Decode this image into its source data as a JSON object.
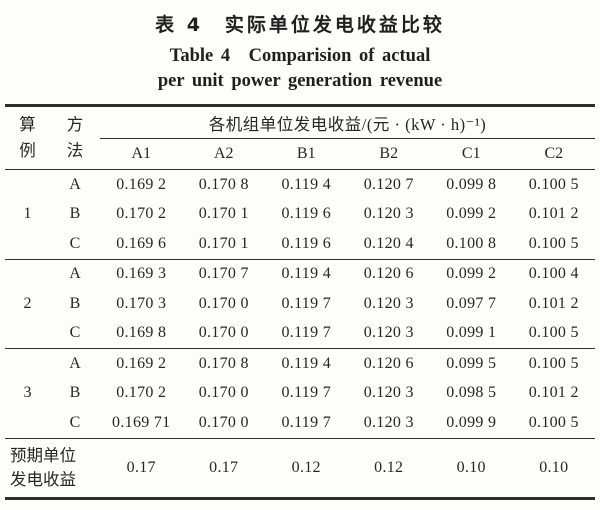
{
  "title": {
    "zh": "表 4　实际单位发电收益比较",
    "en_line1": "Table 4　Comparision of actual",
    "en_line2": "per unit power generation revenue"
  },
  "table": {
    "header": {
      "col_case": "算\n例",
      "col_method": "方\n法",
      "span_label": "各机组单位发电收益/(元 · (kW · h)⁻¹)",
      "unit_cols": [
        "A1",
        "A2",
        "B1",
        "B2",
        "C1",
        "C2"
      ]
    },
    "groups": [
      {
        "case": "1",
        "rows": [
          {
            "method": "A",
            "values": [
              "0.169 2",
              "0.170 8",
              "0.119 4",
              "0.120 7",
              "0.099 8",
              "0.100 5"
            ]
          },
          {
            "method": "B",
            "values": [
              "0.170 2",
              "0.170 1",
              "0.119 6",
              "0.120 3",
              "0.099 2",
              "0.101 2"
            ]
          },
          {
            "method": "C",
            "values": [
              "0.169 6",
              "0.170 1",
              "0.119 6",
              "0.120 4",
              "0.100 8",
              "0.100 5"
            ]
          }
        ]
      },
      {
        "case": "2",
        "rows": [
          {
            "method": "A",
            "values": [
              "0.169 3",
              "0.170 7",
              "0.119 4",
              "0.120 6",
              "0.099 2",
              "0.100 4"
            ]
          },
          {
            "method": "B",
            "values": [
              "0.170 3",
              "0.170 0",
              "0.119 7",
              "0.120 3",
              "0.097 7",
              "0.101 2"
            ]
          },
          {
            "method": "C",
            "values": [
              "0.169 8",
              "0.170 0",
              "0.119 7",
              "0.120 3",
              "0.099 1",
              "0.100 5"
            ]
          }
        ]
      },
      {
        "case": "3",
        "rows": [
          {
            "method": "A",
            "values": [
              "0.169 2",
              "0.170 8",
              "0.119 4",
              "0.120 6",
              "0.099 5",
              "0.100 5"
            ]
          },
          {
            "method": "B",
            "values": [
              "0.170 2",
              "0.170 0",
              "0.119 7",
              "0.120 3",
              "0.098 5",
              "0.101 2"
            ]
          },
          {
            "method": "C",
            "values": [
              "0.169 71",
              "0.170 0",
              "0.119 7",
              "0.120 3",
              "0.099 9",
              "0.100 5"
            ]
          }
        ]
      }
    ],
    "footer": {
      "label": "预期单位\n发电收益",
      "values": [
        "0.17",
        "0.17",
        "0.12",
        "0.12",
        "0.10",
        "0.10"
      ]
    }
  },
  "colors": {
    "text": "#262626",
    "rule": "#2e2e2e",
    "background": "#fdfdfc"
  }
}
